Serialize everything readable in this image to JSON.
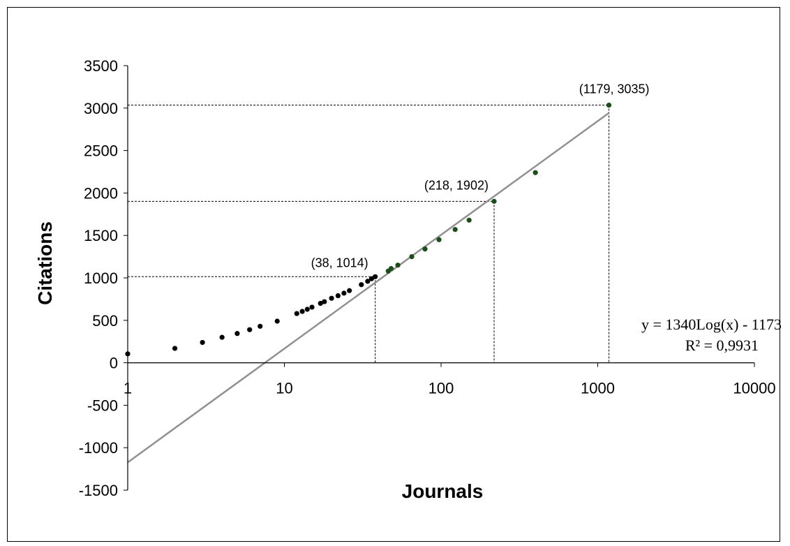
{
  "chart_data": {
    "type": "scatter",
    "xscale": "log",
    "xlim": [
      1,
      10000
    ],
    "ylim": [
      -1500,
      3500
    ],
    "yticks": [
      3500,
      3000,
      2500,
      2000,
      1500,
      1000,
      500,
      0,
      -500,
      -1000,
      -1500
    ],
    "xticks": [
      1,
      10,
      100,
      1000,
      10000
    ],
    "ytick_labels": [
      "3500",
      "3000",
      "2500",
      "2000",
      "1500",
      "1000",
      "500",
      "0",
      "-500",
      "-1000",
      "-1500"
    ],
    "xtick_labels": [
      "1",
      "10",
      "100",
      "1000",
      "10000"
    ],
    "xlabel": "Journals",
    "ylabel": "Citations",
    "grid": false,
    "series": [
      {
        "color": "#000000",
        "points": [
          [
            1,
            105
          ],
          [
            2,
            170
          ],
          [
            3,
            240
          ],
          [
            4,
            300
          ],
          [
            5,
            345
          ],
          [
            6,
            390
          ],
          [
            7,
            430
          ],
          [
            9,
            490
          ],
          [
            12,
            580
          ],
          [
            13,
            605
          ],
          [
            14,
            630
          ],
          [
            15,
            655
          ],
          [
            17,
            700
          ],
          [
            18,
            720
          ],
          [
            20,
            760
          ],
          [
            22,
            790
          ],
          [
            24,
            820
          ],
          [
            26,
            850
          ],
          [
            31,
            920
          ],
          [
            34,
            960
          ],
          [
            36,
            990
          ],
          [
            38,
            1014
          ]
        ]
      },
      {
        "color": "#1a4d1a",
        "points": [
          [
            46,
            1080
          ],
          [
            48,
            1110
          ],
          [
            53,
            1150
          ],
          [
            65,
            1250
          ],
          [
            79,
            1340
          ],
          [
            97,
            1450
          ],
          [
            123,
            1570
          ],
          [
            151,
            1680
          ],
          [
            218,
            1902
          ],
          [
            400,
            2240
          ],
          [
            1179,
            3035
          ]
        ]
      }
    ],
    "trendline": {
      "slope": 1340,
      "intercept": -1173,
      "x_range": [
        1,
        1179
      ],
      "color": "#909090"
    },
    "annotations": [
      {
        "x": 38,
        "y": 1014,
        "label": "(38, 1014)"
      },
      {
        "x": 218,
        "y": 1902,
        "label": "(218, 1902)"
      },
      {
        "x": 1179,
        "y": 3035,
        "label": "(1179, 3035)"
      }
    ],
    "equation": {
      "line1": "y = 1340Log(x) - 1173",
      "line2": "R² = 0,9931"
    }
  }
}
